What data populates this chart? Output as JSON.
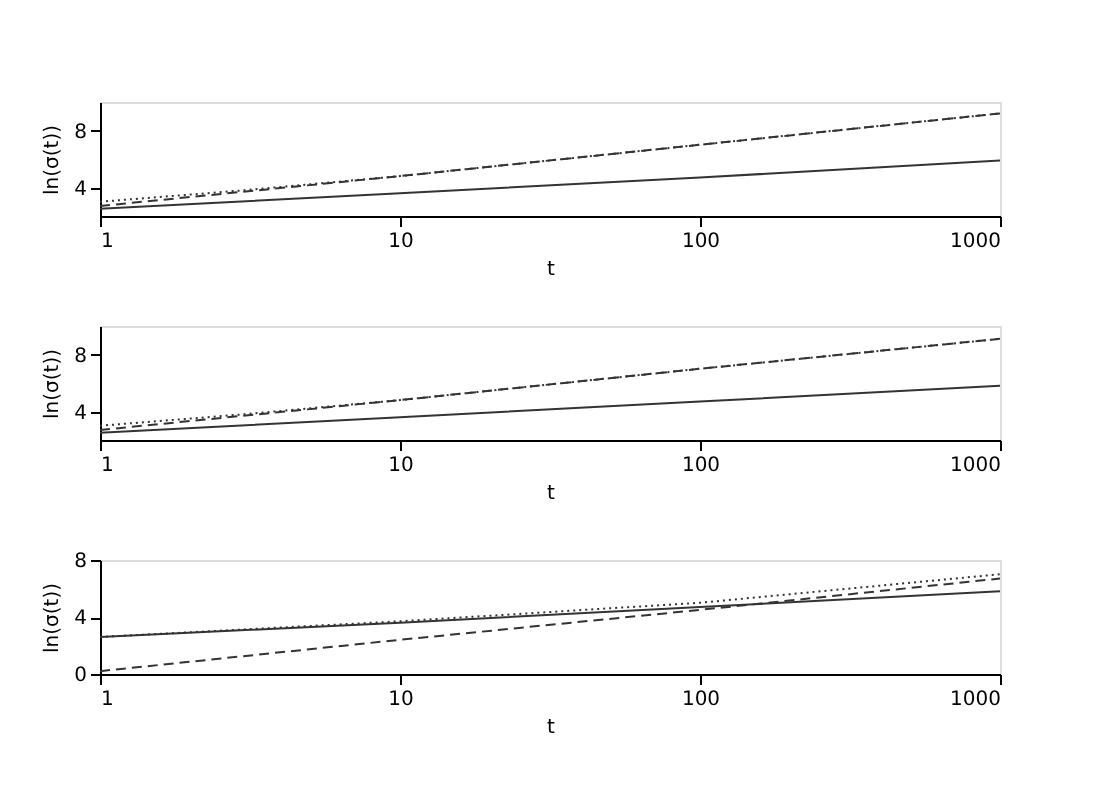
{
  "chart_data": [
    {
      "type": "line",
      "xlabel": "t",
      "ylabel": "ln(σ(t))",
      "log": "x",
      "grid": false,
      "xlim": [
        1,
        1000
      ],
      "xticks": [
        1,
        10,
        100,
        1000
      ],
      "ylim": [
        2,
        10
      ],
      "yticks": [
        4,
        8
      ],
      "series": [
        {
          "color": "#333333",
          "line_style": "solid",
          "x": [
            1,
            10,
            100,
            1000
          ],
          "values": [
            2.5,
            3.6,
            4.7,
            5.9
          ]
        },
        {
          "color": "#333333",
          "line_style": "dashed",
          "x": [
            1,
            10,
            100,
            1000
          ],
          "values": [
            2.7,
            4.8,
            7.0,
            9.2
          ]
        },
        {
          "color": "#333333",
          "line_style": "dotted",
          "x": [
            1,
            3,
            10,
            100,
            1000
          ],
          "values": [
            3.0,
            3.8,
            4.8,
            7.0,
            9.2
          ]
        }
      ]
    },
    {
      "type": "line",
      "xlabel": "t",
      "ylabel": "ln(σ(t))",
      "log": "x",
      "grid": false,
      "xlim": [
        1,
        1000
      ],
      "xticks": [
        1,
        10,
        100,
        1000
      ],
      "ylim": [
        2,
        10
      ],
      "yticks": [
        4,
        8
      ],
      "series": [
        {
          "color": "#333333",
          "line_style": "solid",
          "x": [
            1,
            10,
            100,
            1000
          ],
          "values": [
            2.5,
            3.6,
            4.7,
            5.8
          ]
        },
        {
          "color": "#333333",
          "line_style": "dashed",
          "x": [
            1,
            10,
            100,
            1000
          ],
          "values": [
            2.7,
            4.8,
            7.0,
            9.1
          ]
        },
        {
          "color": "#333333",
          "line_style": "dotted",
          "x": [
            1,
            3,
            10,
            100,
            1000
          ],
          "values": [
            3.0,
            3.8,
            4.8,
            7.0,
            9.1
          ]
        }
      ]
    },
    {
      "type": "line",
      "xlabel": "t",
      "ylabel": "ln(σ(t))",
      "log": "x",
      "grid": false,
      "xlim": [
        1,
        1000
      ],
      "xticks": [
        1,
        10,
        100,
        1000
      ],
      "ylim": [
        0,
        8
      ],
      "yticks": [
        0,
        4,
        8
      ],
      "series": [
        {
          "color": "#333333",
          "line_style": "solid",
          "x": [
            1,
            10,
            100,
            1000
          ],
          "values": [
            2.6,
            3.6,
            4.7,
            5.8
          ]
        },
        {
          "color": "#333333",
          "line_style": "dashed",
          "x": [
            1,
            10,
            100,
            1000
          ],
          "values": [
            0.2,
            2.4,
            4.5,
            6.7
          ]
        },
        {
          "color": "#333333",
          "line_style": "dotted",
          "x": [
            1,
            10,
            100,
            1000
          ],
          "values": [
            2.6,
            3.7,
            5.0,
            7.0
          ]
        }
      ]
    }
  ]
}
